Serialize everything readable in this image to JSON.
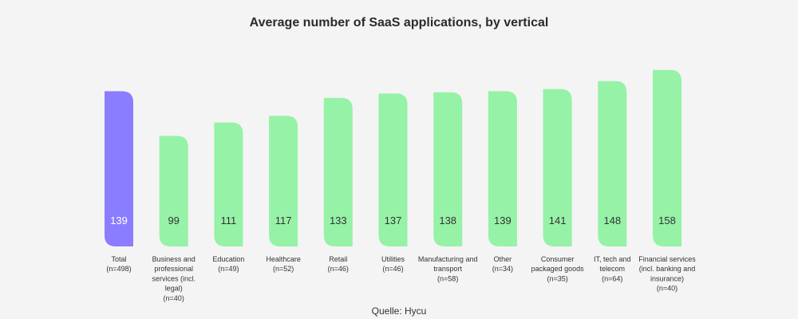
{
  "chart_data": {
    "type": "bar",
    "title": "Average number of SaaS applications, by vertical",
    "xlabel": "",
    "ylabel": "",
    "ylim": [
      0,
      170
    ],
    "grid": false,
    "legend": "none",
    "categories": [
      {
        "label": "Total",
        "n": "(n=498)",
        "value": 139,
        "highlight": true
      },
      {
        "label": "Business and professional services (incl. legal)",
        "n": "(n=40)",
        "value": 99,
        "highlight": false
      },
      {
        "label": "Education",
        "n": "(n=49)",
        "value": 111,
        "highlight": false
      },
      {
        "label": "Healthcare",
        "n": "(n=52)",
        "value": 117,
        "highlight": false
      },
      {
        "label": "Retail",
        "n": "(n=46)",
        "value": 133,
        "highlight": false
      },
      {
        "label": "Utilities",
        "n": "(n=46)",
        "value": 137,
        "highlight": false
      },
      {
        "label": "Manufacturing and transport",
        "n": "(n=58)",
        "value": 138,
        "highlight": false
      },
      {
        "label": "Other",
        "n": "(n=34)",
        "value": 139,
        "highlight": false
      },
      {
        "label": "Consumer packaged goods",
        "n": "(n=35)",
        "value": 141,
        "highlight": false
      },
      {
        "label": "IT, tech and telecom",
        "n": "(n=64)",
        "value": 148,
        "highlight": false
      },
      {
        "label": "Financial services (incl. banking and insurance)",
        "n": "(n=40)",
        "value": 158,
        "highlight": false
      }
    ],
    "colors": {
      "highlight": "#8b7dff",
      "bar": "#96f2a6",
      "highlight_label": "#ffffff",
      "bar_label": "#333333",
      "category_label": "#333333"
    }
  },
  "source": "Quelle: Hycu"
}
